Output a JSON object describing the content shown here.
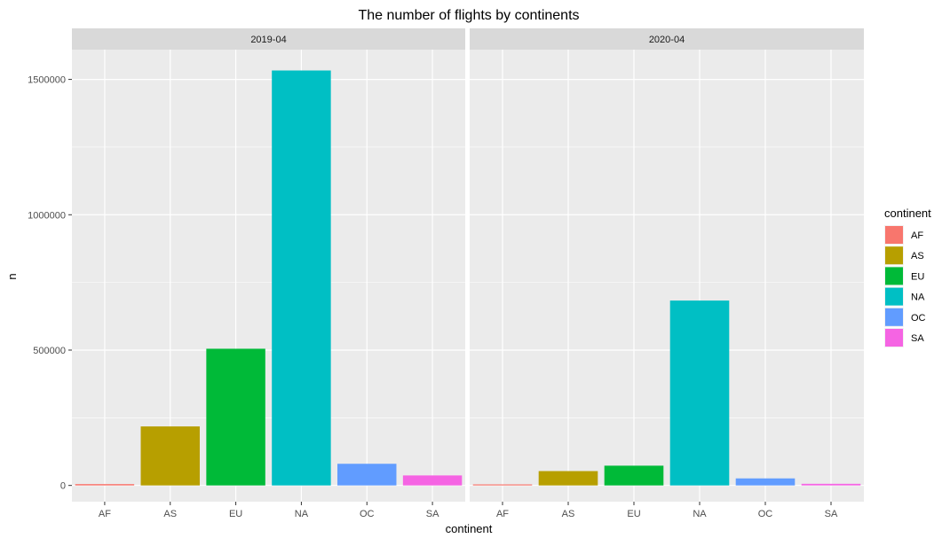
{
  "chart_data": {
    "type": "bar",
    "title": "The number of flights by continents",
    "xlabel": "continent",
    "ylabel": "n",
    "ylim": [
      -60000,
      1610000
    ],
    "yticks": [
      0,
      500000,
      1000000,
      1500000
    ],
    "ytick_labels": [
      "0",
      "500000",
      "1000000",
      "1500000"
    ],
    "grid": true,
    "categories": [
      "AF",
      "AS",
      "EU",
      "NA",
      "OC",
      "SA"
    ],
    "colors": {
      "AF": "#F8766D",
      "AS": "#B79F00",
      "EU": "#00BA38",
      "NA": "#00BFC4",
      "OC": "#619CFF",
      "SA": "#F564E3"
    },
    "facets": [
      {
        "label": "2019-04",
        "values": [
          5000,
          218000,
          505000,
          1533000,
          80000,
          37000
        ]
      },
      {
        "label": "2020-04",
        "values": [
          1000,
          53000,
          73000,
          683000,
          26000,
          6000
        ]
      }
    ],
    "legend": {
      "title": "continent",
      "position": "right",
      "items": [
        "AF",
        "AS",
        "EU",
        "NA",
        "OC",
        "SA"
      ]
    }
  }
}
